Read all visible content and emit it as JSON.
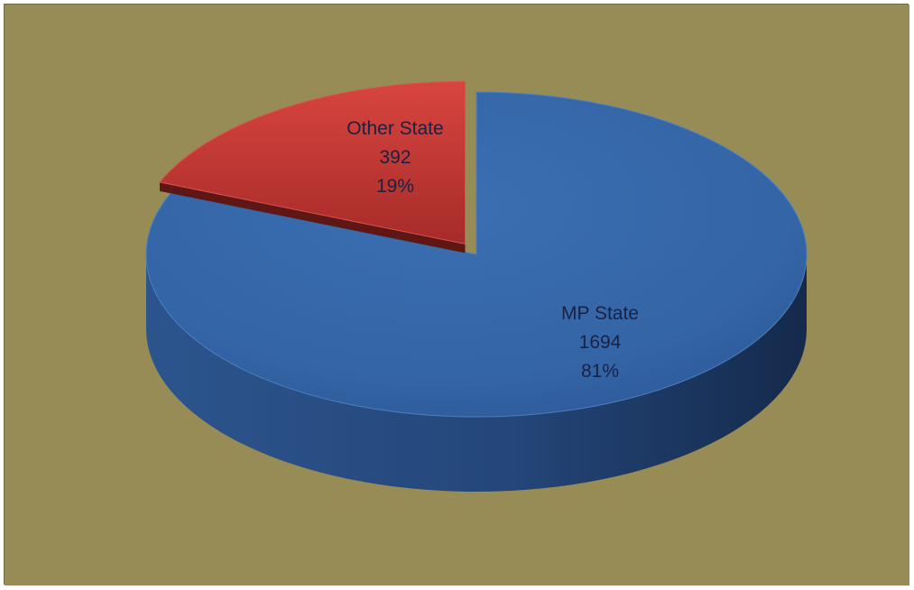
{
  "chart_data": {
    "type": "pie",
    "style": "3d-exploded",
    "background_color": "#978c56",
    "slices": [
      {
        "label": "MP State",
        "value": 1694,
        "percent": "81%",
        "color": "#3b70b3",
        "exploded": false
      },
      {
        "label": "Other State",
        "value": 392,
        "percent": "19%",
        "color": "#c23a35",
        "exploded": true
      }
    ]
  }
}
